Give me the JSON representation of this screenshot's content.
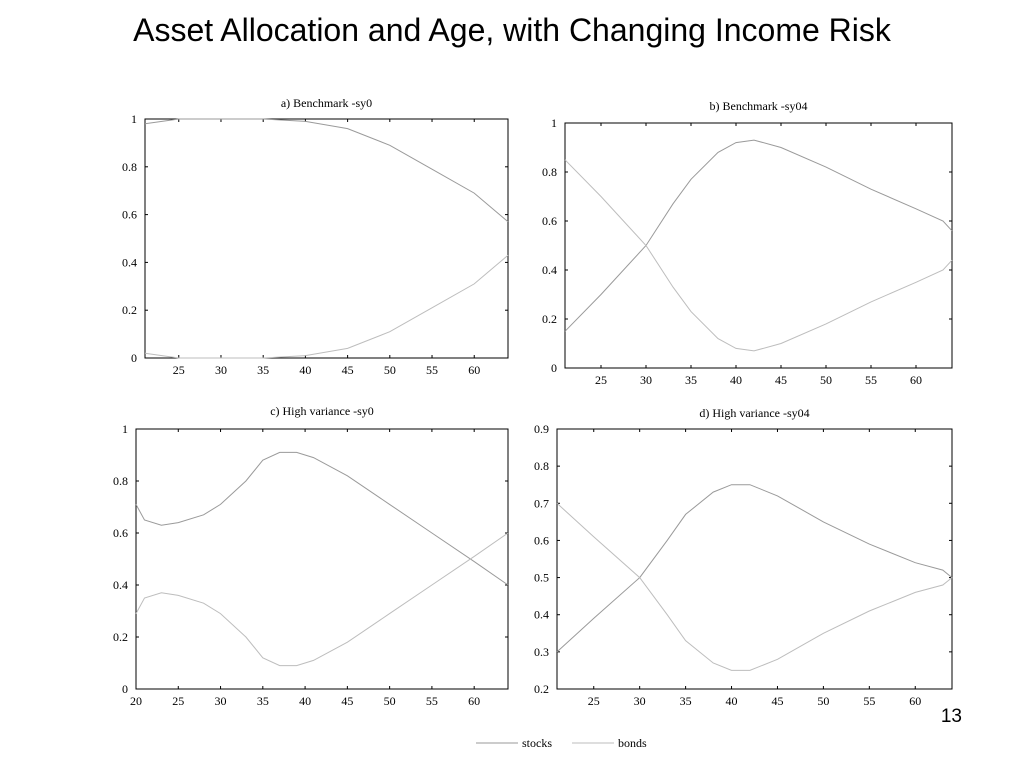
{
  "slide": {
    "title": "Asset Allocation and Age, with Changing Income Risk",
    "page_number": "13"
  },
  "legend": [
    "stocks",
    "bonds"
  ],
  "chart_data": [
    {
      "type": "line",
      "title": "a) Benchmark -sy0",
      "xlim": [
        21,
        64
      ],
      "ylim": [
        0,
        1
      ],
      "xticks": [
        25,
        30,
        35,
        40,
        45,
        50,
        55,
        60
      ],
      "yticks": [
        0,
        0.2,
        0.4,
        0.6,
        0.8,
        1
      ],
      "ytick_labels": [
        "0",
        "0.2",
        "0.4",
        "0.6",
        "0.8",
        "1"
      ],
      "grid": false,
      "series": [
        {
          "name": "stocks",
          "x": [
            21,
            25,
            30,
            35,
            40,
            45,
            50,
            55,
            60,
            64
          ],
          "y": [
            0.98,
            1.0,
            1.0,
            1.0,
            0.99,
            0.96,
            0.89,
            0.79,
            0.69,
            0.57
          ]
        },
        {
          "name": "bonds",
          "x": [
            21,
            25,
            30,
            35,
            40,
            45,
            50,
            55,
            60,
            64
          ],
          "y": [
            0.02,
            0.0,
            0.0,
            0.0,
            0.01,
            0.04,
            0.11,
            0.21,
            0.31,
            0.43
          ]
        }
      ]
    },
    {
      "type": "line",
      "title": "b) Benchmark -sy04",
      "xlim": [
        21,
        64
      ],
      "ylim": [
        0,
        1
      ],
      "xticks": [
        25,
        30,
        35,
        40,
        45,
        50,
        55,
        60
      ],
      "yticks": [
        0,
        0.2,
        0.4,
        0.6,
        0.8,
        1
      ],
      "ytick_labels": [
        "0",
        "0.2",
        "0.4",
        "0.6",
        "0.8",
        "1"
      ],
      "grid": false,
      "series": [
        {
          "name": "stocks",
          "x": [
            21,
            25,
            30,
            33,
            35,
            38,
            40,
            42,
            45,
            50,
            55,
            60,
            63,
            64
          ],
          "y": [
            0.15,
            0.3,
            0.5,
            0.67,
            0.77,
            0.88,
            0.92,
            0.93,
            0.9,
            0.82,
            0.73,
            0.65,
            0.6,
            0.56
          ]
        },
        {
          "name": "bonds",
          "x": [
            21,
            25,
            30,
            33,
            35,
            38,
            40,
            42,
            45,
            50,
            55,
            60,
            63,
            64
          ],
          "y": [
            0.85,
            0.7,
            0.5,
            0.33,
            0.23,
            0.12,
            0.08,
            0.07,
            0.1,
            0.18,
            0.27,
            0.35,
            0.4,
            0.44
          ]
        }
      ]
    },
    {
      "type": "line",
      "title": "c) High variance -sy0",
      "xlim": [
        20,
        64
      ],
      "ylim": [
        0,
        1
      ],
      "xticks": [
        20,
        25,
        30,
        35,
        40,
        45,
        50,
        55,
        60
      ],
      "yticks": [
        0,
        0.2,
        0.4,
        0.6,
        0.8,
        1
      ],
      "ytick_labels": [
        "0",
        "0.2",
        "0.4",
        "0.6",
        "0.8",
        "1"
      ],
      "grid": false,
      "series": [
        {
          "name": "stocks",
          "x": [
            20,
            21,
            23,
            25,
            28,
            30,
            33,
            35,
            37,
            39,
            41,
            45,
            50,
            55,
            60,
            64
          ],
          "y": [
            0.71,
            0.65,
            0.63,
            0.64,
            0.67,
            0.71,
            0.8,
            0.88,
            0.91,
            0.91,
            0.89,
            0.82,
            0.71,
            0.6,
            0.49,
            0.4
          ]
        },
        {
          "name": "bonds",
          "x": [
            20,
            21,
            23,
            25,
            28,
            30,
            33,
            35,
            37,
            39,
            41,
            45,
            50,
            55,
            60,
            64
          ],
          "y": [
            0.29,
            0.35,
            0.37,
            0.36,
            0.33,
            0.29,
            0.2,
            0.12,
            0.09,
            0.09,
            0.11,
            0.18,
            0.29,
            0.4,
            0.51,
            0.6
          ]
        }
      ]
    },
    {
      "type": "line",
      "title": "d) High variance -sy04",
      "xlim": [
        21,
        64
      ],
      "ylim": [
        0.2,
        0.9
      ],
      "xticks": [
        25,
        30,
        35,
        40,
        45,
        50,
        55,
        60
      ],
      "yticks": [
        0.2,
        0.3,
        0.4,
        0.5,
        0.6,
        0.7,
        0.8,
        0.9
      ],
      "ytick_labels": [
        "0.2",
        "0.3",
        "0.4",
        "0.5",
        "0.6",
        "0.7",
        "0.8",
        "0.9"
      ],
      "grid": false,
      "series": [
        {
          "name": "stocks",
          "x": [
            21,
            25,
            30,
            33,
            35,
            38,
            40,
            42,
            45,
            50,
            55,
            60,
            63,
            64
          ],
          "y": [
            0.3,
            0.39,
            0.5,
            0.6,
            0.67,
            0.73,
            0.75,
            0.75,
            0.72,
            0.65,
            0.59,
            0.54,
            0.52,
            0.5
          ]
        },
        {
          "name": "bonds",
          "x": [
            21,
            25,
            30,
            33,
            35,
            38,
            40,
            42,
            45,
            50,
            55,
            60,
            63,
            64
          ],
          "y": [
            0.7,
            0.61,
            0.5,
            0.4,
            0.33,
            0.27,
            0.25,
            0.25,
            0.28,
            0.35,
            0.41,
            0.46,
            0.48,
            0.5
          ]
        }
      ]
    }
  ]
}
